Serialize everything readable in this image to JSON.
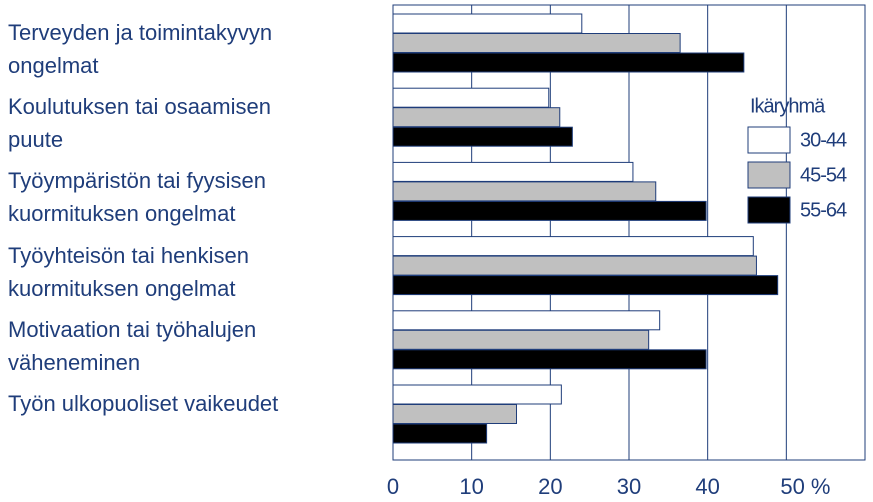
{
  "chart_data": {
    "type": "barh",
    "categories": [
      "Terveyden ja toimintakyvyn\nongelmat",
      "Koulutuksen tai osaamisen\npuute",
      "Työympäristön tai fyysisen\nkuormituksen ongelmat",
      "Työyhteisön tai henkisen\nkuormituksen ongelmat",
      "Motivaation tai työhalujen\nväheneminen",
      "Työn ulkopuoliset vaikeudet"
    ],
    "legend_title": "Ikäryhmä",
    "series": [
      {
        "name": "30-44",
        "color": "#ffffff",
        "values": [
          24,
          19.8,
          30.5,
          45.8,
          33.9,
          21.4
        ]
      },
      {
        "name": "45-54",
        "color": "#c0c0c0",
        "values": [
          36.5,
          21.2,
          33.4,
          46.2,
          32.5,
          15.7
        ]
      },
      {
        "name": "55-64",
        "color": "#000000",
        "values": [
          44.6,
          22.8,
          39.8,
          48.9,
          39.8,
          11.9
        ]
      }
    ],
    "xlim": [
      0,
      60
    ],
    "xticks": [
      0,
      10,
      20,
      30,
      40,
      {
        "value": 50,
        "label": "50 %"
      }
    ],
    "grid": true
  }
}
